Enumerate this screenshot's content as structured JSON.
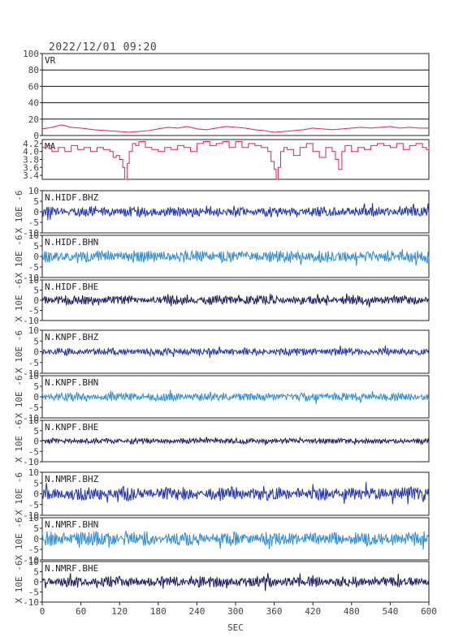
{
  "chart_data": [
    {
      "type": "line",
      "title": "2022/12/01 09:20",
      "xlabel": "SEC",
      "xlim": [
        0,
        600
      ],
      "xticks": [
        "0",
        "60",
        "120",
        "180",
        "240",
        "300",
        "360",
        "420",
        "480",
        "540",
        "600"
      ],
      "panels": [
        {
          "label": "VR",
          "ylim": [
            0,
            100
          ],
          "yticks": [
            "100",
            "80",
            "60",
            "40",
            "20",
            "0"
          ],
          "color": "#dd2255",
          "series": {
            "name": "VR",
            "x": [
              0,
              15,
              30,
              45,
              60,
              80,
              100,
              120,
              135,
              150,
              165,
              180,
              195,
              210,
              225,
              240,
              255,
              270,
              285,
              300,
              315,
              330,
              345,
              360,
              375,
              390,
              405,
              420,
              435,
              450,
              465,
              480,
              495,
              510,
              525,
              540,
              555,
              570,
              585,
              600
            ],
            "values": [
              8,
              10,
              13,
              10,
              9,
              7,
              6,
              5,
              4,
              5,
              6,
              8,
              10,
              9,
              11,
              8,
              7,
              9,
              11,
              10,
              9,
              7,
              6,
              4,
              5,
              6,
              7,
              9,
              8,
              7,
              8,
              9,
              10,
              9,
              10,
              11,
              9,
              10,
              9,
              9
            ]
          }
        },
        {
          "label": "MA",
          "ylim": [
            3.3,
            4.3
          ],
          "yticks": [
            "4.2",
            "4.0",
            "3.8",
            "3.6",
            "3.4"
          ],
          "color": "#dd2255",
          "series": {
            "name": "MA",
            "x": [
              0,
              8,
              15,
              25,
              35,
              45,
              55,
              65,
              75,
              85,
              95,
              105,
              110,
              115,
              120,
              125,
              128,
              132,
              135,
              140,
              145,
              150,
              160,
              170,
              180,
              190,
              200,
              210,
              220,
              230,
              240,
              250,
              260,
              270,
              280,
              290,
              300,
              310,
              320,
              330,
              340,
              350,
              355,
              360,
              363,
              366,
              370,
              375,
              380,
              390,
              400,
              410,
              420,
              430,
              440,
              450,
              455,
              460,
              465,
              470,
              480,
              490,
              500,
              510,
              520,
              530,
              540,
              550,
              560,
              570,
              580,
              590,
              596,
              600
            ],
            "values": [
              4.1,
              4.15,
              4.0,
              4.1,
              4.0,
              4.15,
              4.05,
              4.1,
              4.0,
              4.1,
              4.05,
              4.0,
              3.85,
              3.9,
              3.8,
              3.6,
              3.3,
              3.7,
              4.0,
              4.2,
              4.15,
              4.25,
              4.1,
              4.05,
              4.0,
              4.1,
              4.05,
              4.15,
              4.1,
              4.0,
              4.2,
              4.25,
              4.15,
              4.2,
              4.25,
              4.1,
              4.25,
              4.1,
              4.2,
              4.15,
              4.1,
              4.0,
              3.75,
              3.55,
              3.3,
              3.6,
              4.0,
              4.1,
              4.05,
              3.9,
              4.1,
              4.2,
              4.0,
              3.85,
              4.1,
              4.0,
              3.8,
              3.55,
              4.0,
              4.15,
              4.0,
              4.1,
              4.05,
              4.15,
              4.2,
              4.15,
              4.1,
              4.2,
              4.05,
              4.15,
              4.2,
              4.1,
              4.05,
              4.1
            ]
          }
        },
        {
          "label": "N.HIDF.BHZ",
          "ylim": [
            -10,
            10
          ],
          "yticks": [
            "10",
            "5",
            "0",
            "-5",
            "-10"
          ],
          "ylabel": "X 10E -6",
          "color": "#1a2fb0",
          "amplitude": 2.2,
          "seed": 11
        },
        {
          "label": "N.HIDF.BHN",
          "ylim": [
            -10,
            10
          ],
          "yticks": [
            "10",
            "5",
            "0",
            "-5",
            "-10"
          ],
          "ylabel": "X 10E -6",
          "color": "#2a8ad6",
          "amplitude": 2.6,
          "seed": 23
        },
        {
          "label": "N.HIDF.BHE",
          "ylim": [
            -10,
            10
          ],
          "yticks": [
            "10",
            "5",
            "0",
            "-5",
            "-10"
          ],
          "ylabel": "X 10E -6",
          "color": "#151560",
          "amplitude": 2.0,
          "seed": 37
        },
        {
          "label": "N.KNPF.BHZ",
          "ylim": [
            -10,
            10
          ],
          "yticks": [
            "10",
            "5",
            "0",
            "-5",
            "-10"
          ],
          "ylabel": "X 10E -6",
          "color": "#1a2fb0",
          "amplitude": 1.6,
          "seed": 41
        },
        {
          "label": "N.KNPF.BHN",
          "ylim": [
            -10,
            10
          ],
          "yticks": [
            "10",
            "5",
            "0",
            "-5",
            "-10"
          ],
          "ylabel": "X 10E -6",
          "color": "#2a8ad6",
          "amplitude": 1.8,
          "seed": 53
        },
        {
          "label": "N.KNPF.BHE",
          "ylim": [
            -10,
            10
          ],
          "yticks": [
            "10",
            "5",
            "0",
            "-5",
            "-10"
          ],
          "ylabel": "X 10E -6",
          "color": "#151560",
          "amplitude": 1.2,
          "seed": 67
        },
        {
          "label": "N.NMRF.BHZ",
          "ylim": [
            -10,
            10
          ],
          "yticks": [
            "10",
            "5",
            "0",
            "-5",
            "-10"
          ],
          "ylabel": "X 10E -6",
          "color": "#1a2fb0",
          "amplitude": 2.8,
          "seed": 71
        },
        {
          "label": "N.NMRF.BHN",
          "ylim": [
            -10,
            10
          ],
          "yticks": [
            "10",
            "5",
            "0",
            "-5",
            "-10"
          ],
          "ylabel": "X 10E -6",
          "color": "#2a8ad6",
          "amplitude": 3.0,
          "seed": 83
        },
        {
          "label": "N.NMRF.BHE",
          "ylim": [
            -10,
            10
          ],
          "yticks": [
            "10",
            "5",
            "0",
            "-5",
            "-10"
          ],
          "ylabel": "X 10E -6",
          "color": "#151560",
          "amplitude": 2.4,
          "seed": 97
        }
      ]
    }
  ]
}
